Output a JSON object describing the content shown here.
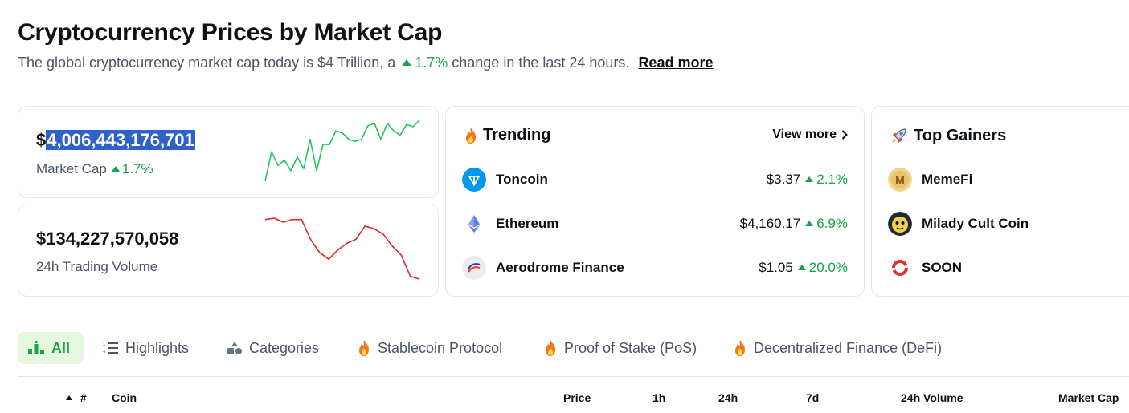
{
  "header": {
    "title": "Cryptocurrency Prices by Market Cap",
    "subtitle_prefix": "The global cryptocurrency market cap today is $4 Trillion, a",
    "subtitle_change": "1.7%",
    "subtitle_suffix": "change in the last 24 hours.",
    "read_more": "Read more"
  },
  "market_cap": {
    "currency_symbol": "$",
    "value": "4,006,443,176,701",
    "label": "Market Cap",
    "change": "1.7%",
    "trend_color": "#22c55e",
    "sparkline": [
      60,
      88,
      75,
      80,
      70,
      83,
      72,
      100,
      70,
      95,
      95,
      108,
      106,
      100,
      98,
      100,
      113,
      115,
      100,
      115,
      108,
      104,
      114,
      112,
      118
    ]
  },
  "volume": {
    "value": "$134,227,570,058",
    "label": "24h Trading Volume",
    "trend_color": "#dc2626",
    "sparkline": [
      115,
      116,
      113,
      115,
      115,
      100,
      90,
      85,
      92,
      97,
      100,
      110,
      108,
      104,
      95,
      88,
      72,
      70
    ]
  },
  "trending": {
    "title": "Trending",
    "view_more": "View more",
    "coins": [
      {
        "name": "Toncoin",
        "price": "$3.37",
        "change": "2.1%",
        "icon": "toncoin-icon",
        "color": "#0098ea"
      },
      {
        "name": "Ethereum",
        "price": "$4,160.17",
        "change": "6.9%",
        "icon": "ethereum-icon",
        "color": "#627eea"
      },
      {
        "name": "Aerodrome Finance",
        "price": "$1.05",
        "change": "20.0%",
        "icon": "aerodrome-icon",
        "color": "#e8e8ec"
      }
    ]
  },
  "top_gainers": {
    "title": "Top Gainers",
    "coins": [
      {
        "name": "MemeFi",
        "icon": "memefi-icon",
        "color": "#e8c36a"
      },
      {
        "name": "Milady Cult Coin",
        "icon": "milady-icon",
        "color": "#f3d24a"
      },
      {
        "name": "SOON",
        "icon": "soon-icon",
        "color": "#e0312b"
      }
    ]
  },
  "tabs": [
    {
      "label": "All",
      "icon": "chart-bars-icon",
      "active": true
    },
    {
      "label": "Highlights",
      "icon": "list-icon",
      "active": false
    },
    {
      "label": "Categories",
      "icon": "shapes-icon",
      "active": false
    },
    {
      "label": "Stablecoin Protocol",
      "icon": "fire-icon",
      "active": false
    },
    {
      "label": "Proof of Stake (PoS)",
      "icon": "fire-icon",
      "active": false
    },
    {
      "label": "Decentralized Finance (DeFi)",
      "icon": "fire-icon",
      "active": false
    }
  ],
  "table": {
    "columns": [
      "#",
      "Coin",
      "Price",
      "1h",
      "24h",
      "7d",
      "24h Volume",
      "Market Cap"
    ]
  },
  "colors": {
    "up": "#16a34a",
    "active_tab_bg": "#e6f7e0",
    "selection": "#2f62c8"
  }
}
